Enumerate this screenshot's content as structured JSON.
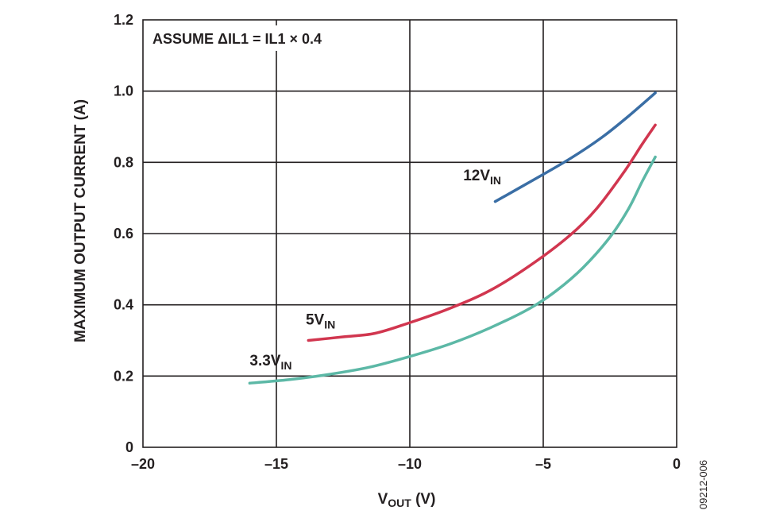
{
  "chart_data": {
    "type": "line",
    "title": "",
    "annotation": "ASSUME ΔIL1 = IL1 × 0.4",
    "xlabel": {
      "main": "V",
      "sub": "OUT",
      "suffix": " (V)"
    },
    "ylabel": "MAXIMUM OUTPUT CURRENT (A)",
    "xlim": [
      -20,
      0
    ],
    "ylim": [
      0,
      1.2
    ],
    "xticks": [
      -20,
      -15,
      -10,
      -5,
      0
    ],
    "xtick_labels": [
      "–20",
      "–15",
      "–10",
      "–5",
      "0"
    ],
    "yticks": [
      0,
      0.2,
      0.4,
      0.6,
      0.8,
      1.0,
      1.2
    ],
    "ytick_labels": [
      "0",
      "0.2",
      "0.4",
      "0.6",
      "0.8",
      "1.0",
      "1.2"
    ],
    "grid": true,
    "figure_id": "09212-006",
    "series": [
      {
        "name": {
          "main": "12V",
          "sub": "IN"
        },
        "color": "#3a6ea5",
        "x": [
          -6.8,
          -5.5,
          -4.0,
          -2.8,
          -1.8,
          -0.8
        ],
        "y": [
          0.69,
          0.745,
          0.81,
          0.87,
          0.93,
          0.995
        ]
      },
      {
        "name": {
          "main": "5V",
          "sub": "IN"
        },
        "color": "#d1364f",
        "x": [
          -13.8,
          -12.5,
          -11.3,
          -10.0,
          -8.5,
          -7.0,
          -5.5,
          -4.0,
          -3.0,
          -2.0,
          -1.3,
          -0.8
        ],
        "y": [
          0.3,
          0.31,
          0.32,
          0.35,
          0.39,
          0.44,
          0.51,
          0.595,
          0.67,
          0.77,
          0.85,
          0.905
        ]
      },
      {
        "name": {
          "main": "3.3V",
          "sub": "IN"
        },
        "color": "#5cb8a6",
        "x": [
          -16.0,
          -14.5,
          -13.0,
          -11.5,
          -10.0,
          -8.5,
          -7.0,
          -5.5,
          -4.5,
          -3.5,
          -2.5,
          -1.8,
          -1.3,
          -0.8
        ],
        "y": [
          0.18,
          0.19,
          0.205,
          0.225,
          0.255,
          0.29,
          0.335,
          0.39,
          0.44,
          0.505,
          0.59,
          0.67,
          0.745,
          0.815
        ]
      }
    ],
    "series_label_positions": [
      {
        "x": -8.0,
        "y": 0.75
      },
      {
        "x": -13.9,
        "y": 0.345
      },
      {
        "x": -16.0,
        "y": 0.23
      }
    ]
  }
}
